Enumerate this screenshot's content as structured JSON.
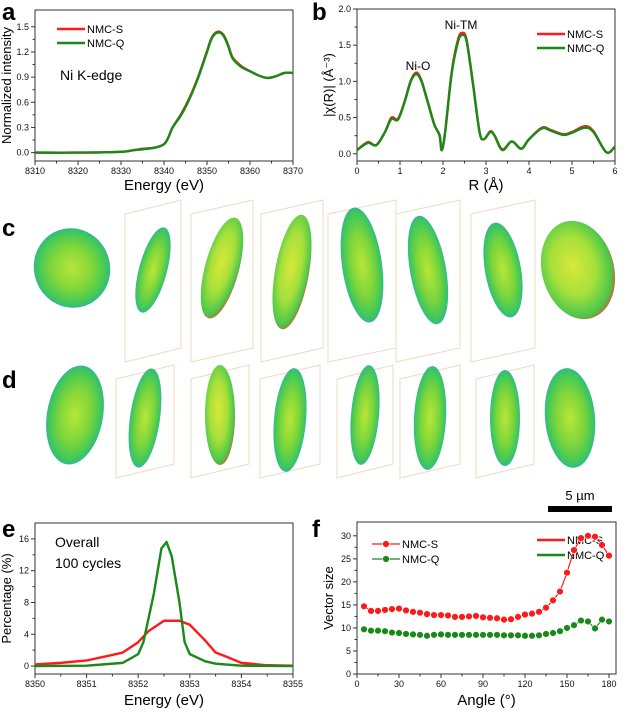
{
  "panels": {
    "a": "a",
    "b": "b",
    "c": "c",
    "d": "d",
    "e": "e",
    "f": "f"
  },
  "scale_bar": {
    "label": "5 µm"
  },
  "chart_data": [
    {
      "id": "a",
      "type": "line",
      "xlabel": "Energy (eV)",
      "ylabel": "Normalized intensity",
      "xlim": [
        8310,
        8370
      ],
      "ylim": [
        -0.1,
        1.7
      ],
      "xticks": [
        8310,
        8320,
        8330,
        8340,
        8350,
        8360,
        8370
      ],
      "xtick_labels": [
        "8310",
        "8320",
        "8330",
        "8340",
        "8350",
        "8360",
        "8370"
      ],
      "yticks": [
        0,
        0.3,
        0.6,
        0.9,
        1.2,
        1.5
      ],
      "ytick_labels": [
        "0.0",
        "0.3",
        "0.6",
        "0.9",
        "1.2",
        "1.5"
      ],
      "legend": "top-left",
      "annotations": [
        "Ni K-edge"
      ],
      "series": [
        {
          "name": "NMC-S",
          "color": "#ff1a1a",
          "x": [
            8310,
            8320,
            8330,
            8333,
            8335,
            8338,
            8340,
            8341,
            8342,
            8344,
            8346,
            8348,
            8350,
            8351,
            8352,
            8353,
            8354,
            8355,
            8356,
            8358,
            8360,
            8362,
            8364,
            8366,
            8368,
            8370
          ],
          "y": [
            0,
            0,
            0.01,
            0.03,
            0.045,
            0.06,
            0.1,
            0.18,
            0.3,
            0.46,
            0.66,
            0.91,
            1.21,
            1.36,
            1.43,
            1.44,
            1.39,
            1.27,
            1.13,
            1.03,
            0.97,
            0.92,
            0.89,
            0.91,
            0.95,
            0.95
          ]
        },
        {
          "name": "NMC-Q",
          "color": "#188a18",
          "x": [
            8310,
            8320,
            8330,
            8333,
            8335,
            8338,
            8340,
            8341,
            8342,
            8344,
            8346,
            8348,
            8350,
            8351,
            8352,
            8353,
            8354,
            8355,
            8356,
            8358,
            8360,
            8362,
            8364,
            8366,
            8368,
            8370
          ],
          "y": [
            0,
            0,
            0.01,
            0.03,
            0.04,
            0.06,
            0.1,
            0.18,
            0.3,
            0.45,
            0.65,
            0.9,
            1.2,
            1.35,
            1.42,
            1.43,
            1.38,
            1.26,
            1.12,
            1.02,
            0.97,
            0.92,
            0.89,
            0.91,
            0.95,
            0.95
          ]
        }
      ]
    },
    {
      "id": "b",
      "type": "line",
      "xlabel": "R (Å)",
      "ylabel": "|χ(R)| (Å⁻³)",
      "xlim": [
        0,
        6
      ],
      "ylim": [
        -0.1,
        2.0
      ],
      "xticks": [
        0,
        1,
        2,
        3,
        4,
        5,
        6
      ],
      "xtick_labels": [
        "0",
        "1",
        "2",
        "3",
        "4",
        "5",
        "6"
      ],
      "yticks": [
        0,
        0.5,
        1.0,
        1.5,
        2.0
      ],
      "ytick_labels": [
        "0.0",
        "0.5",
        "1.0",
        "1.5",
        "2.0"
      ],
      "legend": "top-right",
      "annotations": [
        "Ni-O",
        "Ni-TM"
      ],
      "series": [
        {
          "name": "NMC-S",
          "color": "#ff1a1a",
          "x": [
            0,
            0.25,
            0.45,
            0.65,
            0.8,
            0.95,
            1.1,
            1.25,
            1.38,
            1.5,
            1.65,
            1.8,
            1.92,
            1.97,
            2.05,
            2.2,
            2.35,
            2.45,
            2.55,
            2.7,
            2.85,
            2.95,
            3.1,
            3.2,
            3.38,
            3.6,
            3.82,
            4.0,
            4.3,
            4.5,
            4.8,
            5.0,
            5.3,
            5.5,
            5.8,
            6.0
          ],
          "y": [
            0.05,
            0.16,
            0.12,
            0.3,
            0.5,
            0.48,
            0.71,
            1.01,
            1.12,
            1.01,
            0.71,
            0.4,
            0.26,
            0.05,
            0.3,
            1.12,
            1.58,
            1.67,
            1.57,
            0.96,
            0.3,
            0.2,
            0.31,
            0.25,
            0.06,
            0.17,
            0.07,
            0.2,
            0.36,
            0.33,
            0.27,
            0.3,
            0.38,
            0.31,
            0.02,
            0.1
          ]
        },
        {
          "name": "NMC-Q",
          "color": "#188a18",
          "x": [
            0,
            0.25,
            0.45,
            0.65,
            0.8,
            0.95,
            1.1,
            1.25,
            1.38,
            1.5,
            1.65,
            1.8,
            1.92,
            1.97,
            2.05,
            2.2,
            2.35,
            2.45,
            2.55,
            2.7,
            2.85,
            2.95,
            3.1,
            3.2,
            3.38,
            3.6,
            3.82,
            4.0,
            4.3,
            4.5,
            4.8,
            5.0,
            5.3,
            5.5,
            5.8,
            6.0
          ],
          "y": [
            0.05,
            0.15,
            0.12,
            0.3,
            0.48,
            0.47,
            0.7,
            1.0,
            1.1,
            1.0,
            0.7,
            0.4,
            0.25,
            0.05,
            0.3,
            1.1,
            1.55,
            1.64,
            1.55,
            0.95,
            0.3,
            0.2,
            0.3,
            0.25,
            0.05,
            0.17,
            0.07,
            0.2,
            0.35,
            0.32,
            0.26,
            0.29,
            0.36,
            0.3,
            0.02,
            0.1
          ]
        }
      ]
    },
    {
      "id": "e",
      "type": "line",
      "xlabel": "Energy (eV)",
      "ylabel": "Percentage (%)",
      "xlim": [
        8350,
        8355
      ],
      "ylim": [
        -1,
        18
      ],
      "xticks": [
        8350,
        8351,
        8352,
        8353,
        8354,
        8355
      ],
      "xtick_labels": [
        "8350",
        "8351",
        "8352",
        "8353",
        "8354",
        "8355"
      ],
      "yticks": [
        0,
        4,
        8,
        12,
        16
      ],
      "ytick_labels": [
        "0",
        "4",
        "8",
        "12",
        "16"
      ],
      "legend": "top-right",
      "annotations": [
        "Overall",
        "100 cycles"
      ],
      "series": [
        {
          "name": "NMC-S",
          "color": "#ff1a1a",
          "x": [
            8350,
            8350.5,
            8351,
            8351.5,
            8351.7,
            8352,
            8352.2,
            8352.5,
            8352.8,
            8353,
            8353.3,
            8353.5,
            8353.7,
            8354,
            8354.5,
            8355
          ],
          "y": [
            0.2,
            0.4,
            0.7,
            1.4,
            1.7,
            3.0,
            4.4,
            5.7,
            5.7,
            5.2,
            3.2,
            1.7,
            1.2,
            0.4,
            0.1,
            0.05
          ]
        },
        {
          "name": "NMC-Q",
          "color": "#188a18",
          "x": [
            8350,
            8351,
            8351.7,
            8352,
            8352.1,
            8352.3,
            8352.45,
            8352.55,
            8352.65,
            8352.8,
            8352.9,
            8353,
            8353.3,
            8353.5,
            8354,
            8355
          ],
          "y": [
            0,
            0.05,
            0.4,
            1.5,
            3.0,
            9.0,
            14.8,
            15.6,
            13.8,
            8.0,
            3.0,
            1.5,
            0.6,
            0.3,
            0.05,
            0
          ]
        }
      ]
    },
    {
      "id": "f",
      "type": "line",
      "markers": true,
      "xlabel": "Angle (°)",
      "ylabel": "Vector size",
      "xlim": [
        0,
        185
      ],
      "ylim": [
        0,
        33
      ],
      "xticks": [
        0,
        30,
        60,
        90,
        120,
        150,
        180
      ],
      "xtick_labels": [
        "0",
        "30",
        "60",
        "90",
        "120",
        "150",
        "180"
      ],
      "yticks": [
        0,
        5,
        10,
        15,
        20,
        25,
        30
      ],
      "ytick_labels": [
        "0",
        "5",
        "10",
        "15",
        "20",
        "25",
        "30"
      ],
      "legend": "top-left",
      "series": [
        {
          "name": "NMC-S",
          "color": "#ff1a1a",
          "x": [
            5,
            10,
            15,
            20,
            25,
            30,
            35,
            40,
            45,
            50,
            55,
            60,
            65,
            70,
            75,
            80,
            85,
            90,
            95,
            100,
            105,
            110,
            115,
            120,
            125,
            130,
            135,
            140,
            145,
            150,
            155,
            160,
            165,
            170,
            175,
            180
          ],
          "y": [
            14.7,
            13.7,
            13.7,
            13.9,
            14.1,
            14.2,
            13.8,
            13.5,
            13.3,
            13.0,
            12.8,
            12.8,
            12.7,
            12.4,
            12.4,
            12.5,
            12.6,
            12.3,
            12.2,
            12.1,
            11.8,
            11.9,
            12.4,
            12.9,
            13.1,
            13.5,
            14.4,
            16.0,
            17.9,
            22.0,
            26.9,
            29.5,
            30.0,
            29.8,
            28.0,
            25.7
          ]
        },
        {
          "name": "NMC-Q",
          "color": "#188a18",
          "x": [
            5,
            10,
            15,
            20,
            25,
            30,
            35,
            40,
            45,
            50,
            55,
            60,
            65,
            70,
            75,
            80,
            85,
            90,
            95,
            100,
            105,
            110,
            115,
            120,
            125,
            130,
            135,
            140,
            145,
            150,
            155,
            160,
            165,
            170,
            175,
            180
          ],
          "y": [
            9.7,
            9.4,
            9.4,
            9.3,
            9.0,
            8.9,
            8.7,
            8.6,
            8.5,
            8.3,
            8.5,
            8.6,
            8.5,
            8.5,
            8.5,
            8.5,
            8.5,
            8.5,
            8.5,
            8.5,
            8.4,
            8.4,
            8.4,
            8.3,
            8.3,
            8.4,
            8.7,
            8.9,
            9.3,
            10.0,
            10.6,
            11.6,
            11.4,
            9.9,
            11.8,
            11.4
          ]
        }
      ]
    }
  ]
}
